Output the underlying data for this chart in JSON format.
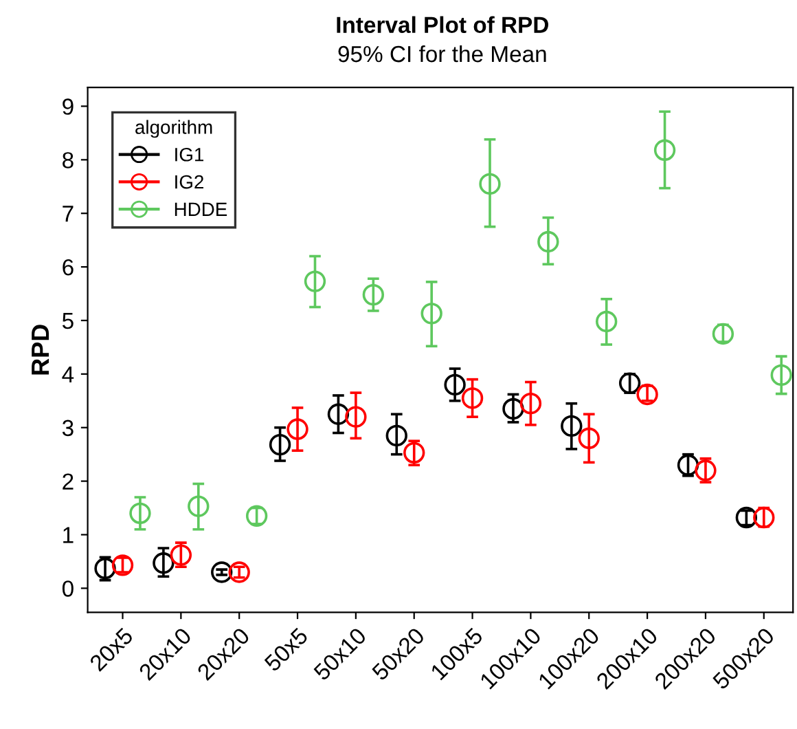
{
  "chart_data": {
    "type": "scatter",
    "title": "Interval Plot of RPD",
    "subtitle": "95% CI for the Mean",
    "ylabel": "RPD",
    "legend_title": "algorithm",
    "categories": [
      "20x5",
      "20x10",
      "20x20",
      "50x5",
      "50x10",
      "50x20",
      "100x5",
      "100x10",
      "100x20",
      "200x10",
      "200x20",
      "500x20"
    ],
    "series": [
      {
        "name": "IG1",
        "color": "#000000",
        "values": [
          0.37,
          0.47,
          0.3,
          2.68,
          3.25,
          2.85,
          3.8,
          3.35,
          3.03,
          3.83,
          2.3,
          1.32
        ],
        "errors": [
          [
            0.15,
            0.58
          ],
          [
            0.22,
            0.75
          ],
          [
            0.25,
            0.35
          ],
          [
            2.38,
            3.0
          ],
          [
            2.9,
            3.6
          ],
          [
            2.5,
            3.25
          ],
          [
            3.5,
            4.1
          ],
          [
            3.1,
            3.62
          ],
          [
            2.6,
            3.45
          ],
          [
            3.65,
            4.0
          ],
          [
            2.1,
            2.5
          ],
          [
            1.18,
            1.45
          ]
        ]
      },
      {
        "name": "IG2",
        "color": "#ff0000",
        "values": [
          0.43,
          0.62,
          0.3,
          2.97,
          3.2,
          2.53,
          3.55,
          3.45,
          2.8,
          3.62,
          2.2,
          1.32
        ],
        "errors": [
          [
            0.3,
            0.57
          ],
          [
            0.4,
            0.85
          ],
          [
            0.2,
            0.4
          ],
          [
            2.57,
            3.37
          ],
          [
            2.8,
            3.65
          ],
          [
            2.3,
            2.75
          ],
          [
            3.2,
            3.9
          ],
          [
            3.05,
            3.85
          ],
          [
            2.35,
            3.25
          ],
          [
            3.5,
            3.78
          ],
          [
            1.98,
            2.42
          ],
          [
            1.15,
            1.5
          ]
        ]
      },
      {
        "name": "HDDE",
        "color": "#5ec85e",
        "values": [
          1.4,
          1.53,
          1.35,
          5.73,
          5.48,
          5.13,
          7.55,
          6.47,
          4.98,
          8.18,
          4.75,
          3.98
        ],
        "errors": [
          [
            1.1,
            1.7
          ],
          [
            1.1,
            1.95
          ],
          [
            1.2,
            1.5
          ],
          [
            5.25,
            6.2
          ],
          [
            5.18,
            5.78
          ],
          [
            4.52,
            5.72
          ],
          [
            6.75,
            8.38
          ],
          [
            6.05,
            6.92
          ],
          [
            4.55,
            5.4
          ],
          [
            7.47,
            8.9
          ],
          [
            4.6,
            4.92
          ],
          [
            3.63,
            4.33
          ]
        ]
      }
    ],
    "ylim": [
      -0.45,
      9.35
    ],
    "yticks": [
      0,
      1,
      2,
      3,
      4,
      5,
      6,
      7,
      8,
      9
    ],
    "grid": false,
    "legend": "top left",
    "marker": "circle"
  }
}
